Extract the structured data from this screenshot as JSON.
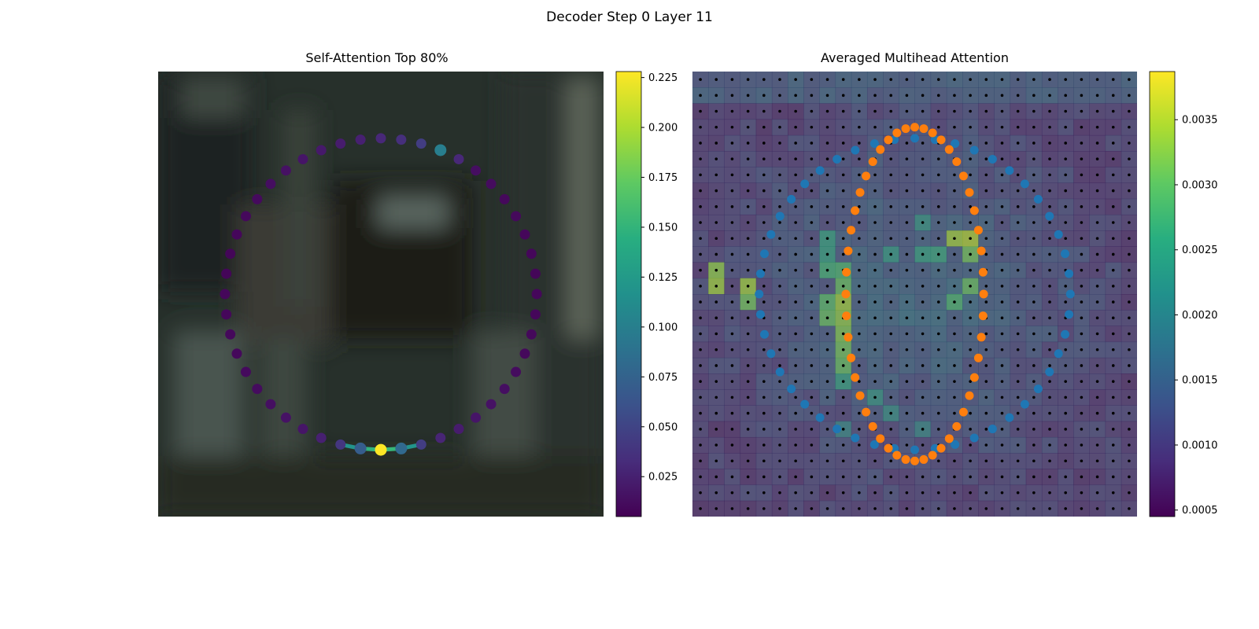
{
  "figure": {
    "title": "Decoder Step 0 Layer 11"
  },
  "chart_data": [
    {
      "type": "scatter",
      "title": "Self-Attention Top 80%",
      "description_type": "ring of 48 points over blurred image; point color = self-attention weight",
      "ring": {
        "n_points": 48,
        "center": [
          0.5,
          0.5
        ],
        "radius": 0.35
      },
      "weights": [
        0.013,
        0.012,
        0.01,
        0.01,
        0.009,
        0.009,
        0.008,
        0.009,
        0.009,
        0.01,
        0.01,
        0.012,
        0.014,
        0.016,
        0.018,
        0.022,
        0.028,
        0.045,
        0.08,
        0.228,
        0.07,
        0.04,
        0.025,
        0.018,
        0.016,
        0.014,
        0.012,
        0.011,
        0.01,
        0.01,
        0.009,
        0.009,
        0.008,
        0.008,
        0.009,
        0.01,
        0.011,
        0.013,
        0.015,
        0.018,
        0.02,
        0.022,
        0.025,
        0.03,
        0.035,
        0.045,
        0.1,
        0.03
      ],
      "highlight_edges": [
        [
          17,
          18
        ],
        [
          18,
          19
        ],
        [
          19,
          20
        ],
        [
          20,
          21
        ]
      ],
      "colorbar": {
        "min": 0.005,
        "max": 0.228,
        "ticks": [
          "0.025",
          "0.050",
          "0.075",
          "0.100",
          "0.125",
          "0.150",
          "0.175",
          "0.200",
          "0.225"
        ],
        "tick_values": [
          0.025,
          0.05,
          0.075,
          0.1,
          0.125,
          0.15,
          0.175,
          0.2,
          0.225
        ],
        "colormap": "viridis"
      }
    },
    {
      "type": "heatmap",
      "title": "Averaged Multihead Attention",
      "grid_size": 28,
      "hot_cells": [
        [
          14,
          9,
          0.0034
        ],
        [
          15,
          9,
          0.0033
        ],
        [
          16,
          9,
          0.0032
        ],
        [
          17,
          9,
          0.0031
        ],
        [
          18,
          9,
          0.003
        ],
        [
          12,
          9,
          0.0028
        ],
        [
          13,
          9,
          0.003
        ],
        [
          12,
          8,
          0.0027
        ],
        [
          14,
          8,
          0.0029
        ],
        [
          15,
          8,
          0.003
        ],
        [
          10,
          16,
          0.0034
        ],
        [
          10,
          17,
          0.0035
        ],
        [
          11,
          17,
          0.0031
        ],
        [
          13,
          17,
          0.003
        ],
        [
          14,
          16,
          0.0028
        ],
        [
          12,
          1,
          0.0033
        ],
        [
          13,
          1,
          0.0034
        ],
        [
          13,
          3,
          0.0034
        ],
        [
          14,
          3,
          0.0031
        ],
        [
          11,
          14,
          0.0024
        ],
        [
          11,
          15,
          0.0025
        ],
        [
          11,
          12,
          0.0023
        ],
        [
          9,
          14,
          0.0022
        ],
        [
          20,
          11,
          0.0022
        ],
        [
          21,
          12,
          0.0021
        ],
        [
          22,
          14,
          0.002
        ],
        [
          10,
          8,
          0.0024
        ],
        [
          11,
          8,
          0.0024
        ],
        [
          19,
          9,
          0.0024
        ],
        [
          22,
          9,
          0.002
        ]
      ],
      "base_level": 0.0009,
      "blue_ring": {
        "n_points": 48,
        "center": [
          0.5,
          0.5
        ],
        "rx": 0.35,
        "ry": 0.35,
        "color": "#1f77b4"
      },
      "orange_ring": {
        "n_points": 48,
        "center": [
          0.5,
          0.5
        ],
        "rx": 0.155,
        "ry": 0.375,
        "color": "#ff7f0e"
      },
      "colorbar": {
        "min": 0.00045,
        "max": 0.00387,
        "ticks": [
          "0.0005",
          "0.0010",
          "0.0015",
          "0.0020",
          "0.0025",
          "0.0030",
          "0.0035"
        ],
        "tick_values": [
          0.0005,
          0.001,
          0.0015,
          0.002,
          0.0025,
          0.003,
          0.0035
        ],
        "colormap": "viridis"
      }
    }
  ]
}
